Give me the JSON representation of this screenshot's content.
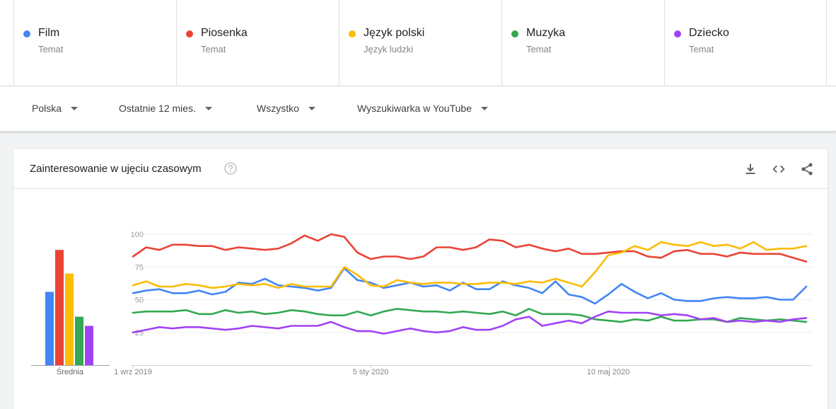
{
  "terms": [
    {
      "name": "Film",
      "category": "Temat",
      "color": "#4285f4"
    },
    {
      "name": "Piosenka",
      "category": "Temat",
      "color": "#ea4335"
    },
    {
      "name": "Język polski",
      "category": "Język ludzki",
      "color": "#fbbc04"
    },
    {
      "name": "Muzyka",
      "category": "Temat",
      "color": "#34a853"
    },
    {
      "name": "Dziecko",
      "category": "Temat",
      "color": "#a142f4"
    }
  ],
  "filters": {
    "region": "Polska",
    "period": "Ostatnie 12 mies.",
    "category": "Wszystko",
    "search_type": "Wyszukiwarka w YouTube"
  },
  "card": {
    "title": "Zainteresowanie w ujęciu czasowym",
    "icons": [
      "help-icon",
      "download-icon",
      "embed-icon",
      "share-icon"
    ]
  },
  "chart_data": [
    {
      "type": "bar",
      "categories": [
        "Film",
        "Piosenka",
        "Język polski",
        "Muzyka",
        "Dziecko"
      ],
      "values": [
        56,
        88,
        70,
        37,
        30
      ],
      "xlabel": "Średnia",
      "ylim": [
        0,
        100
      ]
    },
    {
      "type": "line",
      "x_tick_labels": [
        "1 wrz 2019",
        "5 sty 2020",
        "10 maj 2020"
      ],
      "x_tick_index": [
        0,
        18,
        36
      ],
      "y_ticks": [
        25,
        50,
        75,
        100
      ],
      "ylim": [
        0,
        100
      ],
      "grid": true,
      "series": [
        {
          "name": "Film",
          "color": "#4285f4",
          "values": [
            55,
            57,
            58,
            55,
            55,
            57,
            54,
            56,
            63,
            62,
            66,
            61,
            60,
            59,
            57,
            59,
            74,
            65,
            63,
            59,
            61,
            63,
            60,
            61,
            57,
            63,
            58,
            58,
            64,
            61,
            59,
            55,
            64,
            54,
            52,
            47,
            54,
            62,
            56,
            51,
            55,
            50,
            49,
            49,
            51,
            52,
            51,
            51,
            52,
            50,
            50,
            60
          ]
        },
        {
          "name": "Piosenka",
          "color": "#ea4335",
          "values": [
            83,
            90,
            88,
            92,
            92,
            91,
            91,
            88,
            90,
            89,
            88,
            89,
            93,
            99,
            95,
            100,
            98,
            86,
            81,
            83,
            83,
            81,
            83,
            90,
            90,
            88,
            90,
            96,
            95,
            90,
            92,
            89,
            87,
            89,
            85,
            85,
            86,
            87,
            87,
            83,
            82,
            87,
            88,
            85,
            85,
            83,
            86,
            85,
            85,
            85,
            82,
            79
          ]
        },
        {
          "name": "Język polski",
          "color": "#fbbc04",
          "values": [
            61,
            64,
            60,
            60,
            62,
            61,
            59,
            60,
            62,
            61,
            62,
            59,
            62,
            60,
            60,
            60,
            75,
            69,
            61,
            60,
            65,
            63,
            62,
            63,
            63,
            62,
            62,
            63,
            63,
            62,
            64,
            63,
            66,
            63,
            60,
            71,
            84,
            86,
            91,
            88,
            94,
            92,
            91,
            94,
            91,
            92,
            89,
            94,
            88,
            89,
            89,
            91
          ]
        },
        {
          "name": "Muzyka",
          "color": "#34a853",
          "values": [
            40,
            41,
            41,
            41,
            42,
            39,
            39,
            42,
            40,
            41,
            39,
            40,
            42,
            41,
            39,
            38,
            38,
            41,
            38,
            41,
            43,
            42,
            41,
            41,
            40,
            41,
            40,
            39,
            41,
            38,
            43,
            39,
            39,
            39,
            38,
            35,
            34,
            33,
            35,
            34,
            37,
            34,
            34,
            35,
            35,
            33,
            36,
            35,
            34,
            35,
            34,
            33
          ]
        },
        {
          "name": "Dziecko",
          "color": "#a142f4",
          "values": [
            25,
            27,
            29,
            28,
            29,
            29,
            28,
            27,
            28,
            30,
            29,
            28,
            30,
            30,
            30,
            33,
            29,
            26,
            26,
            24,
            26,
            28,
            26,
            25,
            26,
            29,
            27,
            27,
            30,
            35,
            37,
            30,
            32,
            34,
            32,
            37,
            41,
            40,
            40,
            40,
            38,
            39,
            38,
            35,
            36,
            33,
            34,
            33,
            34,
            33,
            35,
            36
          ]
        }
      ]
    }
  ]
}
